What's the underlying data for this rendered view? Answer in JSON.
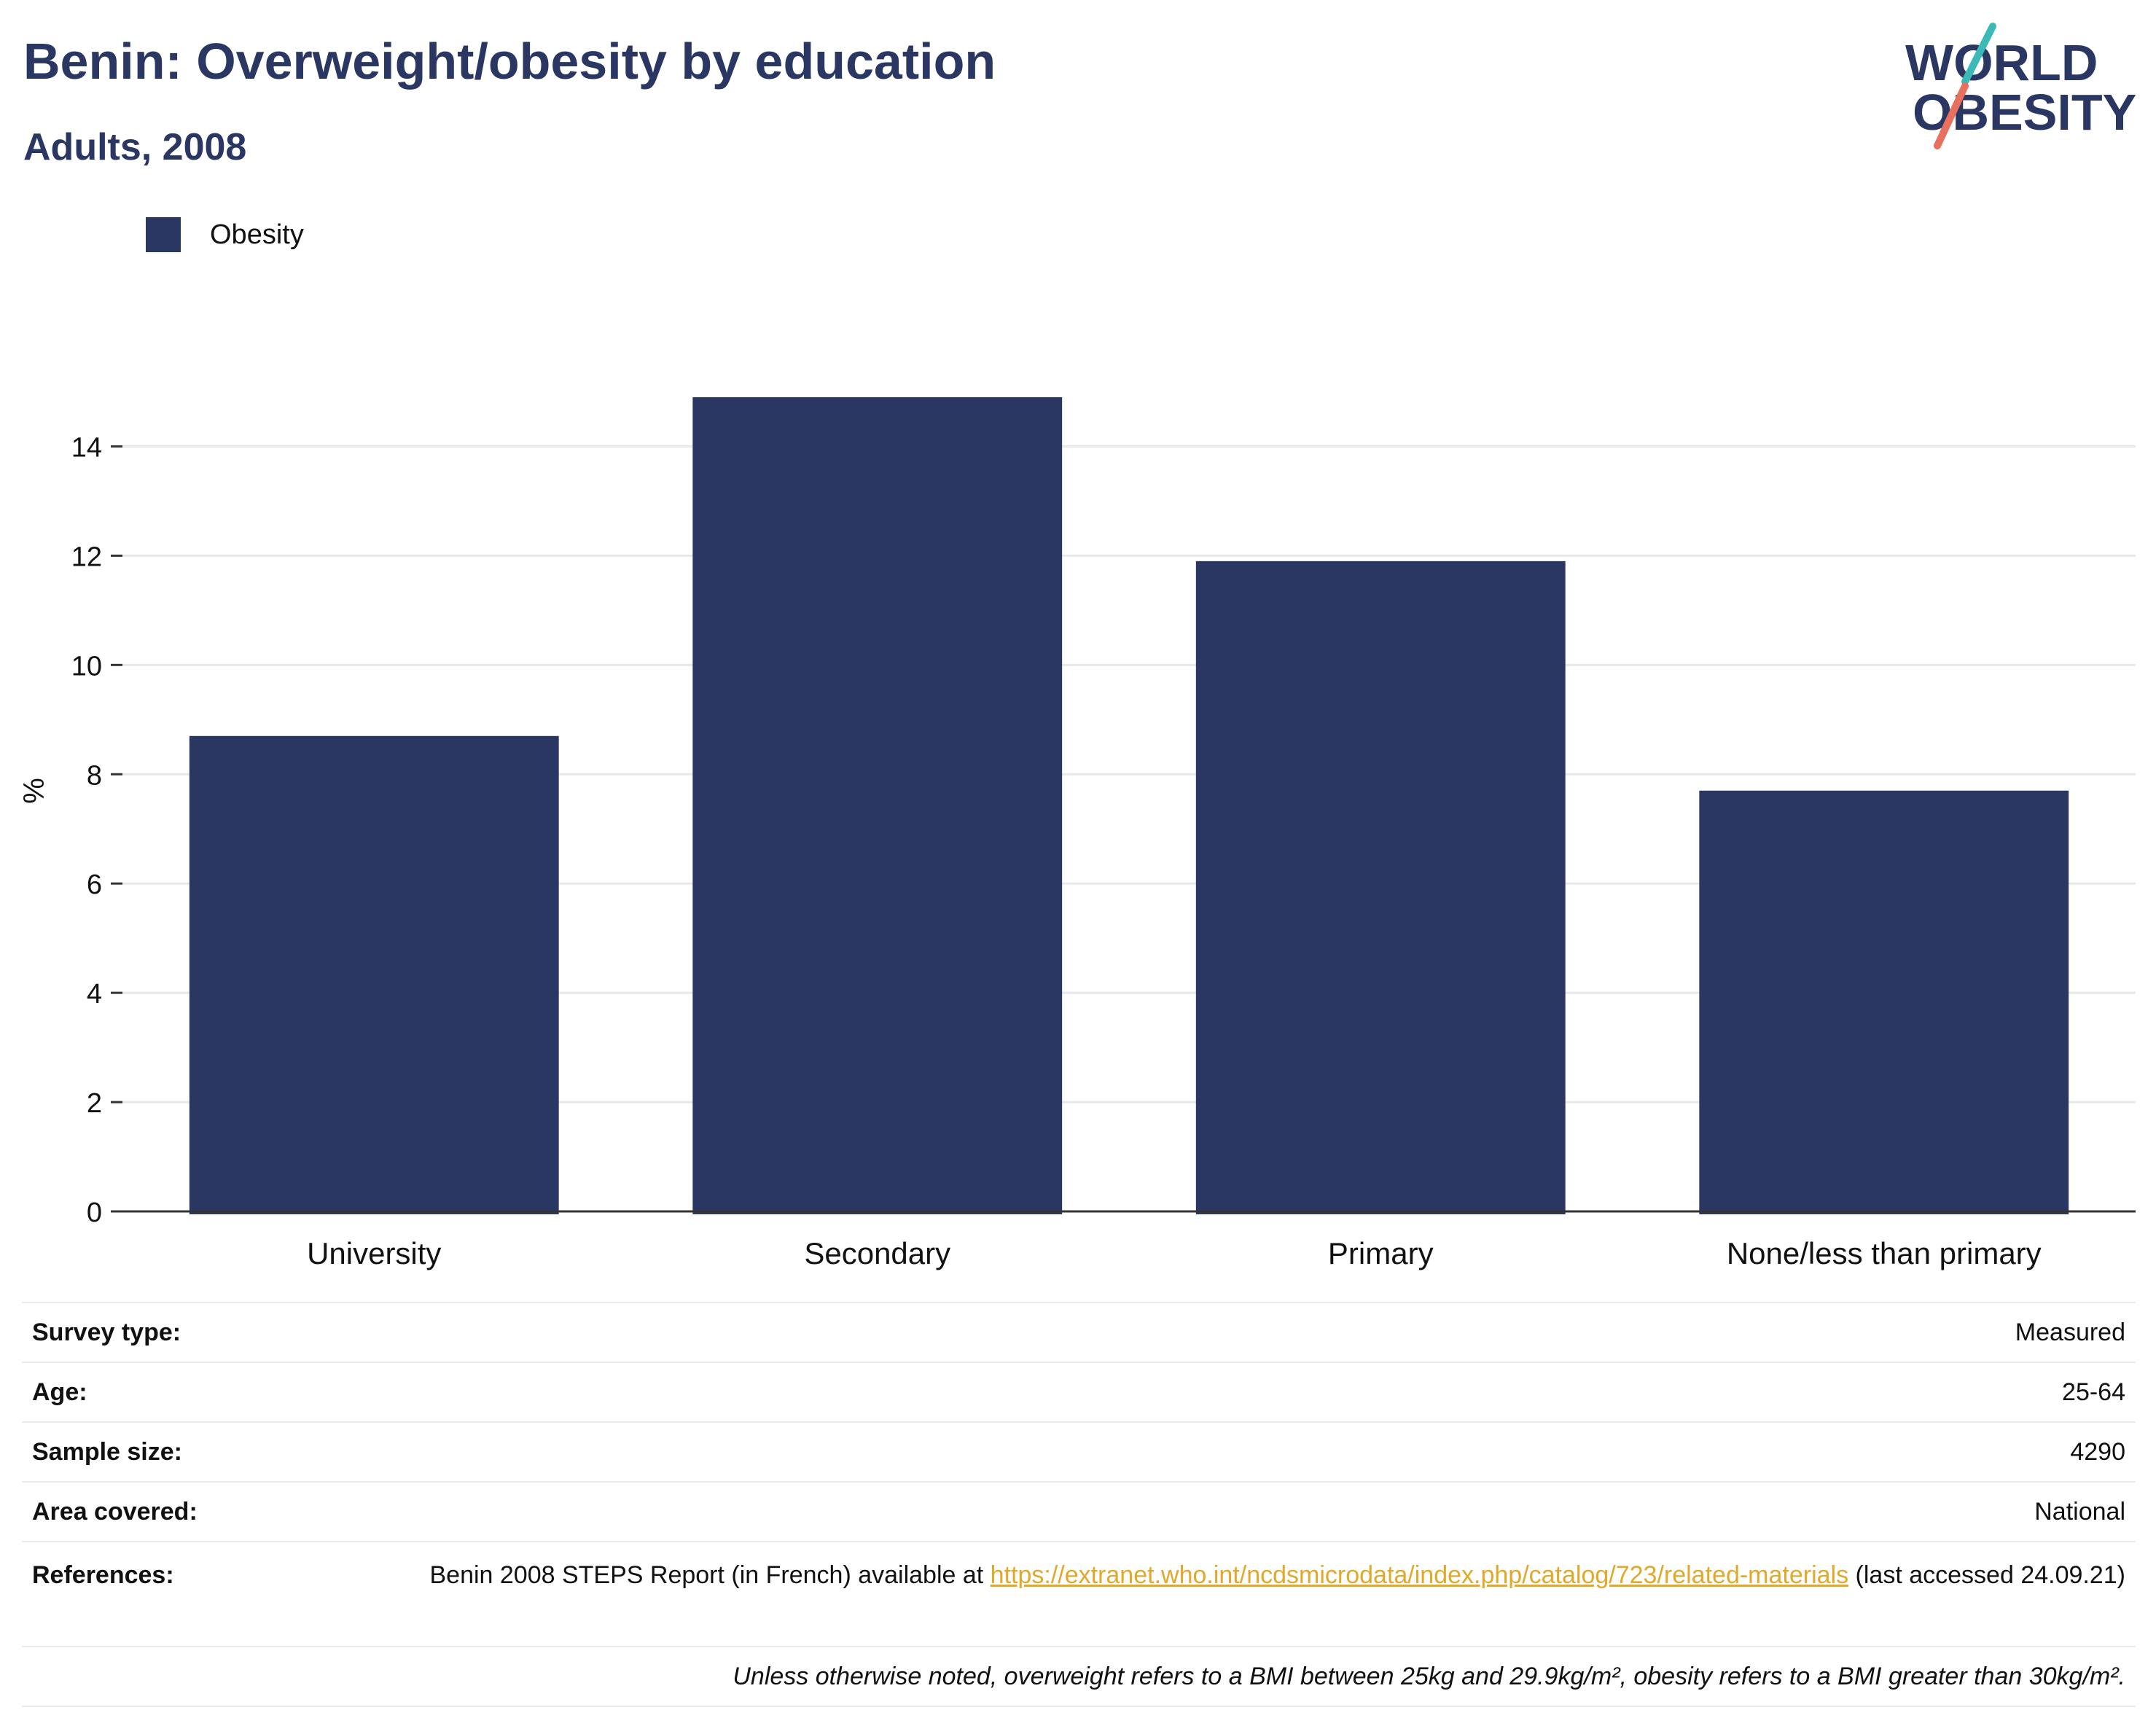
{
  "header": {
    "title": "Benin: Overweight/obesity by education",
    "subtitle": "Adults, 2008"
  },
  "logo": {
    "line1": "WORLD",
    "line2": "OBESITY",
    "slash_colors": [
      "#3bb9b6",
      "#e8705f"
    ]
  },
  "legend": {
    "items": [
      {
        "label": "Obesity",
        "color": "#2b3763"
      }
    ]
  },
  "chart_data": {
    "type": "bar",
    "title": "Benin: Overweight/obesity by education",
    "subtitle": "Adults, 2008",
    "categories": [
      "University",
      "Secondary",
      "Primary",
      "None/less than primary"
    ],
    "series": [
      {
        "name": "Obesity",
        "color": "#2b3763",
        "values": [
          8.7,
          14.9,
          11.9,
          7.7
        ]
      }
    ],
    "xlabel": "",
    "ylabel": "%",
    "ylim": [
      0,
      15.5
    ],
    "yticks": [
      0,
      2,
      4,
      6,
      8,
      10,
      12,
      14
    ],
    "grid": true,
    "legend_position": "top-left"
  },
  "metadata": {
    "rows": [
      {
        "label": "Survey type:",
        "value": "Measured"
      },
      {
        "label": "Age:",
        "value": "25-64"
      },
      {
        "label": "Sample size:",
        "value": "4290"
      },
      {
        "label": "Area covered:",
        "value": "National"
      }
    ],
    "references": {
      "label": "References:",
      "prefix": "Benin 2008 STEPS Report (in French) available at ",
      "link": "https://extranet.who.int/ncdsmicrodata/index.php/catalog/723/related-materials",
      "suffix": " (last accessed 24.09.21)"
    },
    "note": "Unless otherwise noted, overweight refers to a BMI between 25kg and 29.9kg/m², obesity refers to a BMI greater than 30kg/m²."
  }
}
